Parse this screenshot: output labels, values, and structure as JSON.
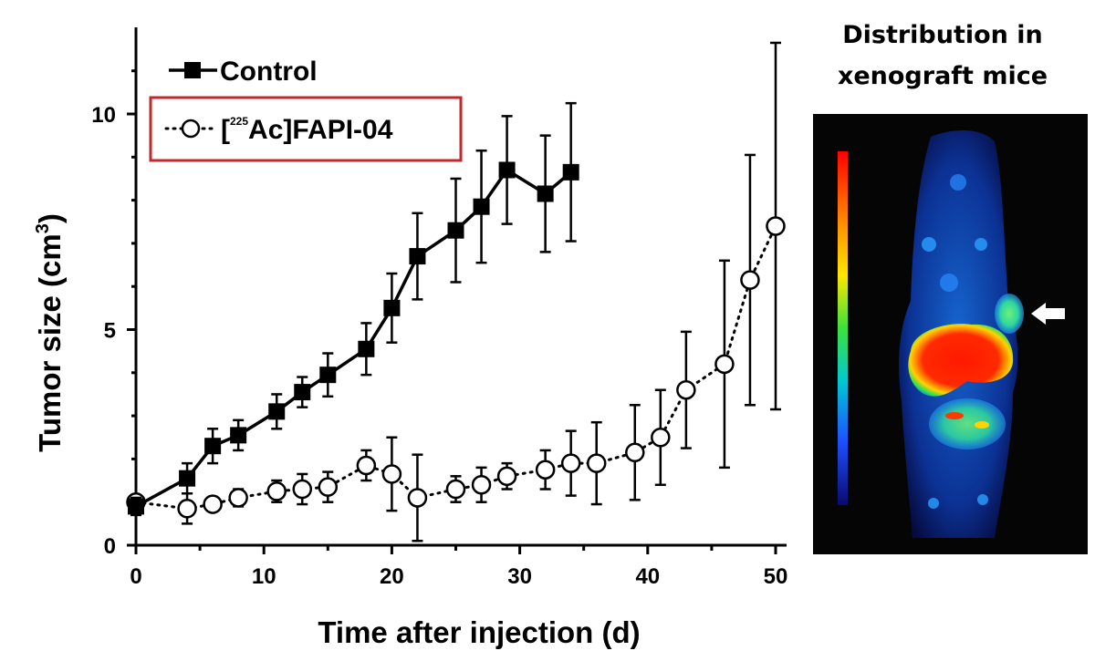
{
  "chart_data": {
    "type": "line",
    "ylabel_main": "Tumor size (cm",
    "ylabel_sup": "3",
    "ylabel_close": ")",
    "xlabel": "Time after injection (d)",
    "xlim": [
      0,
      52
    ],
    "ylim": [
      0,
      12
    ],
    "xticks": [
      "0",
      "10",
      "20",
      "30",
      "40",
      "50"
    ],
    "xtick_values": [
      0,
      10,
      20,
      30,
      40,
      50
    ],
    "yticks": [
      "0",
      "5",
      "10"
    ],
    "ytick_values": [
      0,
      5,
      10
    ],
    "legend_position": "top-left",
    "series": [
      {
        "name": "Control",
        "style": "solid-line-filled-square",
        "x": [
          0,
          4,
          6,
          8,
          11,
          13,
          15,
          18,
          20,
          22,
          25,
          27,
          29,
          32,
          34
        ],
        "y": [
          0.9,
          1.55,
          2.3,
          2.55,
          3.1,
          3.55,
          3.95,
          4.55,
          5.5,
          6.7,
          7.3,
          7.85,
          8.7,
          8.15,
          8.65
        ],
        "err": [
          0.2,
          0.35,
          0.4,
          0.35,
          0.4,
          0.35,
          0.5,
          0.6,
          0.8,
          1.0,
          1.2,
          1.3,
          1.25,
          1.35,
          1.6
        ]
      },
      {
        "name_prefix": "[",
        "name_sup": "225",
        "name_suffix": "Ac]FAPI-04",
        "style": "dotted-line-open-circle",
        "x": [
          0,
          4,
          6,
          8,
          11,
          13,
          15,
          18,
          20,
          22,
          25,
          27,
          29,
          32,
          34,
          36,
          39,
          41,
          43,
          46,
          48,
          50
        ],
        "y": [
          1.0,
          0.85,
          0.95,
          1.1,
          1.25,
          1.3,
          1.35,
          1.85,
          1.65,
          1.1,
          1.3,
          1.4,
          1.6,
          1.75,
          1.9,
          1.9,
          2.15,
          2.5,
          3.6,
          4.2,
          6.15,
          7.4
        ],
        "err": [
          0.1,
          0.35,
          0.15,
          0.2,
          0.25,
          0.35,
          0.35,
          0.35,
          0.85,
          1.0,
          0.3,
          0.4,
          0.3,
          0.45,
          0.75,
          0.95,
          1.1,
          1.1,
          1.35,
          2.4,
          2.9,
          4.25
        ]
      }
    ]
  },
  "inset": {
    "title_line1": "Distribution in",
    "title_line2": "xenograft mice",
    "colors": {
      "background": "#050505",
      "hot": "#ff1a00",
      "warm": "#ffd200",
      "mid": "#22e05a",
      "cool": "#1a7dff",
      "cold": "#0a1a8c"
    },
    "arrow_icon": "arrow-left-icon"
  },
  "colors": {
    "legend_box_border": "#c0282d",
    "axis": "#000000"
  }
}
